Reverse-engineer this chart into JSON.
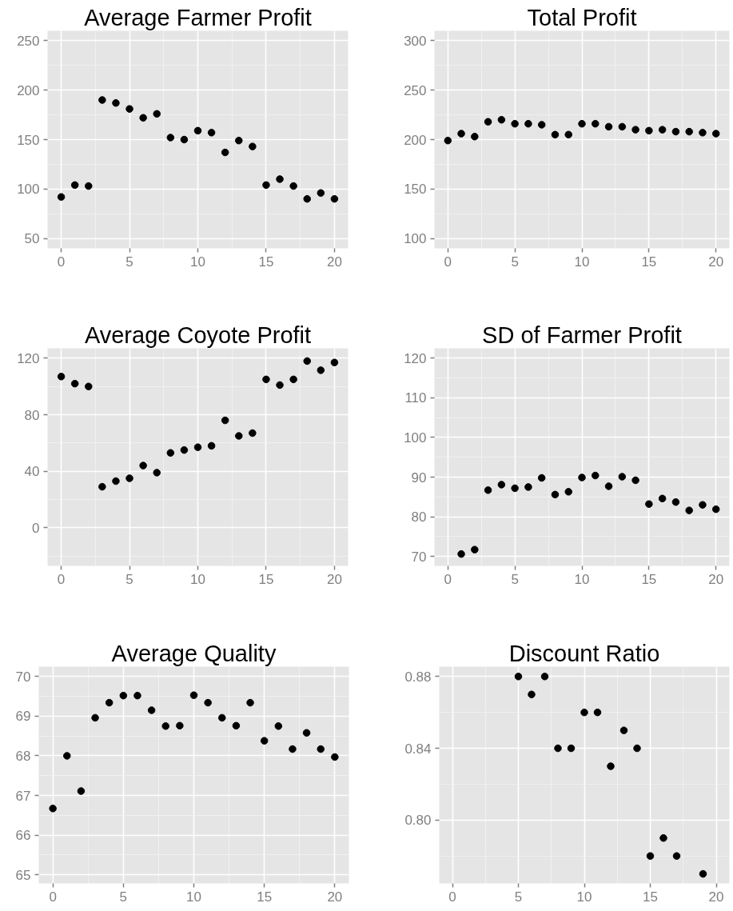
{
  "chart_data": [
    {
      "type": "scatter",
      "title": "Average Farmer Profit",
      "x": [
        0,
        1,
        2,
        3,
        4,
        5,
        6,
        7,
        8,
        9,
        10,
        11,
        12,
        13,
        14,
        15,
        16,
        17,
        18,
        19,
        20
      ],
      "values": [
        92,
        104,
        103,
        190,
        187,
        181,
        172,
        176,
        152,
        150,
        159,
        157,
        137,
        149,
        143,
        104,
        110,
        103,
        90,
        96,
        90
      ],
      "color": "#000000",
      "marker": "circle",
      "xlim": [
        -1,
        21
      ],
      "xticks": [
        0,
        5,
        10,
        15,
        20
      ],
      "ylim": [
        40,
        260
      ],
      "yticks": [
        50,
        100,
        150,
        200,
        250
      ],
      "grid": true
    },
    {
      "type": "scatter",
      "title": "Total Profit",
      "x": [
        0,
        1,
        2,
        3,
        4,
        5,
        6,
        7,
        8,
        9,
        10,
        11,
        12,
        13,
        14,
        15,
        16,
        17,
        18,
        19,
        20
      ],
      "values": [
        199,
        206,
        203,
        218,
        220,
        216,
        216,
        215,
        205,
        205,
        216,
        216,
        213,
        213,
        210,
        209,
        210,
        208,
        208,
        207,
        206
      ],
      "color": "#000000",
      "marker": "circle",
      "xlim": [
        -1,
        21
      ],
      "xticks": [
        0,
        5,
        10,
        15,
        20
      ],
      "ylim": [
        90,
        310
      ],
      "yticks": [
        100,
        150,
        200,
        250,
        300
      ],
      "grid": true
    },
    {
      "type": "scatter",
      "title": "Average Coyote Profit",
      "x": [
        0,
        1,
        2,
        3,
        4,
        5,
        6,
        7,
        8,
        9,
        10,
        11,
        12,
        13,
        14,
        15,
        16,
        17,
        18,
        19,
        20
      ],
      "values": [
        107,
        102,
        100,
        29,
        33,
        35,
        44,
        39,
        53,
        55,
        57,
        58,
        76,
        65,
        67,
        105,
        101,
        105,
        118,
        111.5,
        117
      ],
      "color": "#000000",
      "marker": "circle",
      "xlim": [
        -1,
        21
      ],
      "xticks": [
        0,
        5,
        10,
        15,
        20
      ],
      "ylim": [
        -27,
        127
      ],
      "yticks": [
        0,
        40,
        80,
        120
      ],
      "grid": true
    },
    {
      "type": "scatter",
      "title": "SD of Farmer Profit",
      "x": [
        1,
        2,
        3,
        4,
        5,
        6,
        7,
        8,
        9,
        10,
        11,
        12,
        13,
        14,
        15,
        16,
        17,
        18,
        19,
        20
      ],
      "values": [
        70.6,
        71.7,
        86.7,
        88.1,
        87.2,
        87.5,
        89.8,
        85.6,
        86.3,
        89.9,
        90.4,
        87.7,
        90.1,
        89.2,
        83.2,
        84.6,
        83.7,
        81.6,
        83.0,
        81.9
      ],
      "color": "#000000",
      "marker": "circle",
      "xlim": [
        -1,
        21
      ],
      "xticks": [
        0,
        5,
        10,
        15,
        20
      ],
      "ylim": [
        67.6,
        122.5
      ],
      "yticks": [
        70,
        80,
        90,
        100,
        110,
        120
      ],
      "grid": true
    },
    {
      "type": "scatter",
      "title": "Average Quality",
      "x": [
        0,
        1,
        2,
        3,
        4,
        5,
        6,
        7,
        8,
        9,
        10,
        11,
        12,
        13,
        14,
        15,
        16,
        17,
        18,
        19,
        20
      ],
      "values": [
        66.67,
        68.0,
        67.11,
        68.96,
        69.34,
        69.52,
        69.52,
        69.15,
        68.75,
        68.76,
        69.53,
        69.34,
        68.96,
        68.76,
        69.34,
        68.38,
        68.75,
        68.17,
        68.58,
        68.17,
        67.97
      ],
      "color": "#000000",
      "marker": "circle",
      "xlim": [
        -1,
        21
      ],
      "xticks": [
        0,
        5,
        10,
        15,
        20
      ],
      "ylim": [
        64.78,
        70.25
      ],
      "yticks": [
        65,
        66,
        67,
        68,
        69,
        70
      ],
      "grid": true
    },
    {
      "type": "scatter",
      "title": "Discount Ratio",
      "x": [
        5,
        6,
        7,
        8,
        9,
        10,
        11,
        12,
        13,
        14,
        15,
        16,
        17,
        19
      ],
      "values": [
        0.88,
        0.87,
        0.88,
        0.84,
        0.84,
        0.86,
        0.86,
        0.83,
        0.85,
        0.84,
        0.78,
        0.79,
        0.78,
        0.77
      ],
      "color": "#000000",
      "marker": "circle",
      "xlim": [
        -1,
        21
      ],
      "xticks": [
        0,
        5,
        10,
        15,
        20
      ],
      "ylim": [
        0.7647,
        0.8855
      ],
      "yticks": [
        {
          "value": 0.8,
          "label": "0.80"
        },
        0.84,
        0.88
      ],
      "grid": true
    }
  ]
}
